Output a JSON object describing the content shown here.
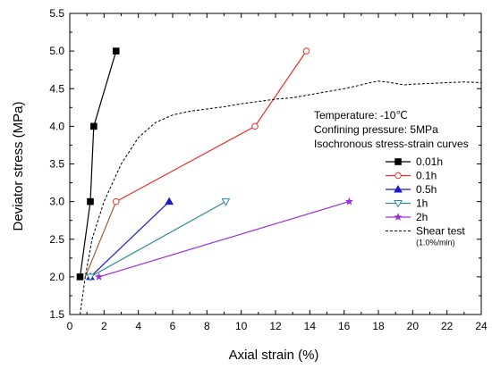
{
  "chart_data": {
    "type": "line",
    "xlabel": "Axial strain (%)",
    "ylabel": "Deviator stress (MPa)",
    "xlim": [
      0,
      24
    ],
    "ylim": [
      1.5,
      5.5
    ],
    "x_ticks": [
      0,
      2,
      4,
      6,
      8,
      10,
      12,
      14,
      16,
      18,
      20,
      22,
      24
    ],
    "y_ticks": [
      1.5,
      2.0,
      2.5,
      3.0,
      3.5,
      4.0,
      4.5,
      5.0,
      5.5
    ],
    "y_tick_labels": [
      "1.5",
      "2.0",
      "2.5",
      "3.0",
      "3.5",
      "4.0",
      "4.5",
      "5.0",
      "5.5"
    ],
    "grid": false,
    "legend_position": "right",
    "annotations": [
      "Temperature: -10℃",
      "Confining pressure: 5MPa",
      "Isochronous stress-strain curves"
    ],
    "series": [
      {
        "name": "0.01h",
        "color": "#000000",
        "marker": "square-filled",
        "points": [
          [
            0.6,
            2.0
          ],
          [
            1.2,
            3.0
          ],
          [
            1.4,
            4.0
          ],
          [
            2.7,
            5.0
          ]
        ]
      },
      {
        "name": "0.1h",
        "color": "#e8302a",
        "marker": "circle-open",
        "points": [
          [
            2.7,
            3.0
          ],
          [
            10.8,
            4.0
          ],
          [
            13.8,
            5.0
          ]
        ]
      },
      {
        "name": "0.5h",
        "color": "#1a1acc",
        "marker": "triangle-up-filled",
        "points": [
          [
            1.2,
            2.0
          ],
          [
            5.8,
            3.0
          ]
        ]
      },
      {
        "name": "1h",
        "color": "#2a8a9a",
        "marker": "triangle-down-open",
        "points": [
          [
            1.2,
            2.0
          ],
          [
            9.1,
            3.0
          ]
        ]
      },
      {
        "name": "2h",
        "color": "#9a30d8",
        "marker": "star",
        "points": [
          [
            1.7,
            2.0
          ],
          [
            16.3,
            3.0
          ]
        ]
      },
      {
        "name": "Shear test",
        "sublabel": "(1.0%/min)",
        "color": "#000000",
        "marker": "none",
        "dashed": true,
        "points": [
          [
            0.6,
            1.5
          ],
          [
            0.9,
            2.0
          ],
          [
            1.3,
            2.5
          ],
          [
            2.0,
            3.0
          ],
          [
            3.0,
            3.5
          ],
          [
            4.0,
            3.85
          ],
          [
            5.0,
            4.05
          ],
          [
            6.0,
            4.15
          ],
          [
            7.0,
            4.2
          ],
          [
            8.0,
            4.23
          ],
          [
            9.0,
            4.26
          ],
          [
            10.0,
            4.3
          ],
          [
            11.0,
            4.33
          ],
          [
            12.0,
            4.36
          ],
          [
            13.0,
            4.38
          ],
          [
            14.0,
            4.42
          ],
          [
            15.0,
            4.46
          ],
          [
            16.0,
            4.5
          ],
          [
            17.0,
            4.55
          ],
          [
            17.5,
            4.58
          ],
          [
            18.0,
            4.6
          ],
          [
            18.5,
            4.59
          ],
          [
            19.0,
            4.57
          ],
          [
            19.5,
            4.55
          ],
          [
            20.0,
            4.56
          ],
          [
            21.0,
            4.57
          ],
          [
            22.0,
            4.58
          ],
          [
            23.0,
            4.59
          ],
          [
            24.0,
            4.58
          ]
        ]
      }
    ],
    "connectors": [
      {
        "color": "#8b4513",
        "points": [
          [
            0.9,
            2.0
          ],
          [
            2.7,
            3.0
          ]
        ]
      }
    ]
  }
}
